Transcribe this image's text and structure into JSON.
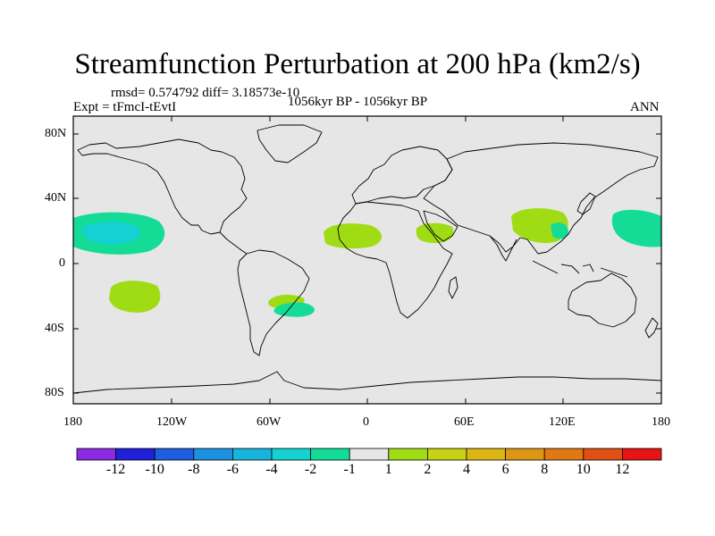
{
  "title": "Streamfunction Perturbation at 200 hPa (km2/s)",
  "stats_line": "rmsd= 0.574792 diff= 3.18573e-10",
  "expt_label": "Expt = tFmcI-tEvtI",
  "period_label": "1056kyr BP - 1056kyr BP",
  "season_label": "ANN",
  "axes": {
    "lat_ticks": [
      "80N",
      "40N",
      "0",
      "40S",
      "80S"
    ],
    "lon_ticks": [
      "180",
      "120W",
      "60W",
      "0",
      "60E",
      "120E",
      "180"
    ]
  },
  "colorbar": {
    "colors": [
      "#8a2be2",
      "#2020d8",
      "#1e5fe0",
      "#1e90e0",
      "#18b4dc",
      "#14d2d2",
      "#14dc96",
      "#e6e6e6",
      "#a0dc14",
      "#c8d214",
      "#dcb414",
      "#dc9614",
      "#e07814",
      "#e05014",
      "#e61414"
    ],
    "labels": [
      "-12",
      "-10",
      "-8",
      "-6",
      "-4",
      "-2",
      "-1",
      "1",
      "2",
      "4",
      "6",
      "8",
      "10",
      "12"
    ]
  },
  "anomalies": [
    {
      "name": "central-pacific-north-negative",
      "value_range": "-4 to -1",
      "color": "#14dc96"
    },
    {
      "name": "central-pacific-north-core",
      "value_range": "-4 to -2",
      "color": "#14d2d2"
    },
    {
      "name": "south-pacific-positive",
      "value_range": "1 to 2",
      "color": "#a0dc14"
    },
    {
      "name": "south-america-positive",
      "value_range": "1 to 2",
      "color": "#a0dc14"
    },
    {
      "name": "south-america-negative",
      "value_range": "-2 to -1",
      "color": "#14dc96"
    },
    {
      "name": "west-africa-positive",
      "value_range": "1 to 2",
      "color": "#a0dc14"
    },
    {
      "name": "arabia-positive",
      "value_range": "1 to 2",
      "color": "#a0dc14"
    },
    {
      "name": "south-asia-positive",
      "value_range": "1 to 2",
      "color": "#a0dc14"
    },
    {
      "name": "east-asia-negative",
      "value_range": "-2 to -1",
      "color": "#14dc96"
    },
    {
      "name": "west-pacific-negative",
      "value_range": "-2 to -1",
      "color": "#14dc96"
    }
  ]
}
